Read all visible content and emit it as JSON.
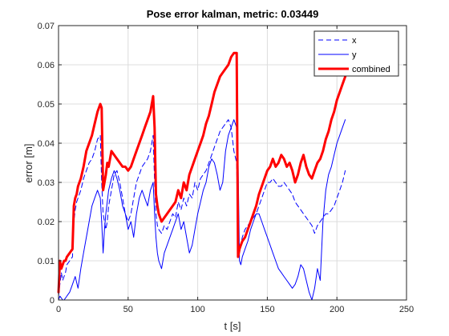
{
  "chart_data": {
    "type": "line",
    "title": "Pose error kalman, metric: 0.03449",
    "xlabel": "t [s]",
    "ylabel": "error [m]",
    "xlim": [
      0,
      250
    ],
    "ylim": [
      0,
      0.07
    ],
    "xticks": [
      0,
      50,
      100,
      150,
      200,
      250
    ],
    "yticks": [
      0,
      0.01,
      0.02,
      0.03,
      0.04,
      0.05,
      0.06,
      0.07
    ],
    "xtick_labels": [
      "0",
      "50",
      "100",
      "150",
      "200",
      "250"
    ],
    "ytick_labels": [
      "0",
      "0.01",
      "0.02",
      "0.03",
      "0.04",
      "0.05",
      "0.06",
      "0.07"
    ],
    "grid": true,
    "legend_position": "top-right",
    "series": [
      {
        "name": "x",
        "color": "#0000ff",
        "style": "dashed",
        "width": 1,
        "x": [
          0,
          1,
          2,
          3,
          4,
          5,
          6,
          8,
          10,
          11,
          12,
          13,
          14,
          16,
          18,
          20,
          22,
          24,
          26,
          28,
          30,
          31,
          32,
          33,
          34,
          35,
          36,
          38,
          40,
          42,
          44,
          46,
          48,
          50,
          52,
          54,
          56,
          58,
          60,
          62,
          64,
          66,
          68,
          69,
          70,
          71,
          72,
          74,
          76,
          78,
          80,
          82,
          84,
          86,
          88,
          90,
          92,
          94,
          96,
          98,
          100,
          102,
          104,
          106,
          108,
          110,
          112,
          114,
          116,
          118,
          120,
          122,
          124,
          126,
          128,
          129,
          130,
          131,
          132,
          134,
          136,
          138,
          140,
          142,
          144,
          146,
          148,
          150,
          152,
          154,
          156,
          158,
          160,
          162,
          164,
          166,
          168,
          170,
          172,
          174,
          176,
          178,
          180,
          182,
          184,
          186,
          188,
          190,
          192,
          194,
          196,
          198,
          200,
          202,
          204,
          206
        ],
        "y": [
          0.001,
          0.004,
          0.007,
          0.005,
          0.006,
          0.007,
          0.009,
          0.01,
          0.011,
          0.02,
          0.023,
          0.025,
          0.026,
          0.028,
          0.031,
          0.033,
          0.035,
          0.036,
          0.038,
          0.041,
          0.042,
          0.03,
          0.022,
          0.02,
          0.018,
          0.02,
          0.024,
          0.028,
          0.032,
          0.033,
          0.03,
          0.026,
          0.022,
          0.02,
          0.022,
          0.026,
          0.03,
          0.032,
          0.034,
          0.035,
          0.036,
          0.038,
          0.042,
          0.03,
          0.022,
          0.019,
          0.018,
          0.017,
          0.019,
          0.018,
          0.02,
          0.022,
          0.021,
          0.025,
          0.023,
          0.026,
          0.024,
          0.027,
          0.026,
          0.03,
          0.028,
          0.031,
          0.032,
          0.033,
          0.035,
          0.037,
          0.039,
          0.041,
          0.043,
          0.044,
          0.045,
          0.046,
          0.044,
          0.038,
          0.035,
          0.012,
          0.012,
          0.014,
          0.016,
          0.018,
          0.019,
          0.02,
          0.021,
          0.022,
          0.024,
          0.026,
          0.028,
          0.03,
          0.03,
          0.031,
          0.03,
          0.029,
          0.029,
          0.03,
          0.029,
          0.028,
          0.027,
          0.025,
          0.024,
          0.023,
          0.022,
          0.021,
          0.02,
          0.019,
          0.017,
          0.019,
          0.02,
          0.021,
          0.022,
          0.022,
          0.023,
          0.024,
          0.026,
          0.028,
          0.03,
          0.033
        ]
      },
      {
        "name": "y",
        "color": "#0000ff",
        "style": "solid",
        "width": 1,
        "x": [
          0,
          1,
          2,
          3,
          4,
          5,
          6,
          8,
          10,
          12,
          14,
          16,
          18,
          20,
          22,
          24,
          26,
          28,
          30,
          31,
          32,
          33,
          34,
          36,
          38,
          40,
          42,
          44,
          46,
          48,
          50,
          52,
          54,
          56,
          58,
          60,
          62,
          64,
          66,
          68,
          69,
          70,
          71,
          72,
          74,
          76,
          78,
          80,
          82,
          84,
          86,
          88,
          90,
          92,
          94,
          96,
          98,
          100,
          102,
          104,
          106,
          108,
          110,
          112,
          114,
          116,
          118,
          120,
          122,
          124,
          126,
          128,
          129,
          130,
          131,
          132,
          134,
          136,
          138,
          140,
          142,
          144,
          146,
          148,
          150,
          152,
          154,
          156,
          158,
          160,
          162,
          164,
          166,
          168,
          170,
          172,
          174,
          176,
          178,
          180,
          182,
          184,
          186,
          188,
          190,
          192,
          194,
          196,
          198,
          200,
          202,
          204,
          206
        ],
        "y": [
          0.0,
          0.001,
          0.0005,
          0.0,
          0.0,
          0.0005,
          0.001,
          0.002,
          0.004,
          0.006,
          0.003,
          0.008,
          0.012,
          0.016,
          0.02,
          0.024,
          0.026,
          0.028,
          0.026,
          0.02,
          0.012,
          0.018,
          0.022,
          0.028,
          0.031,
          0.033,
          0.031,
          0.028,
          0.024,
          0.022,
          0.018,
          0.02,
          0.016,
          0.022,
          0.026,
          0.028,
          0.026,
          0.024,
          0.028,
          0.03,
          0.022,
          0.016,
          0.012,
          0.01,
          0.008,
          0.012,
          0.014,
          0.016,
          0.018,
          0.02,
          0.022,
          0.018,
          0.02,
          0.016,
          0.012,
          0.014,
          0.018,
          0.022,
          0.025,
          0.028,
          0.03,
          0.034,
          0.036,
          0.035,
          0.032,
          0.028,
          0.03,
          0.038,
          0.042,
          0.044,
          0.046,
          0.044,
          0.036,
          0.01,
          0.009,
          0.011,
          0.013,
          0.015,
          0.018,
          0.02,
          0.022,
          0.022,
          0.02,
          0.018,
          0.016,
          0.014,
          0.012,
          0.01,
          0.008,
          0.007,
          0.006,
          0.005,
          0.004,
          0.003,
          0.004,
          0.006,
          0.009,
          0.008,
          0.005,
          0.002,
          0.0,
          0.003,
          0.008,
          0.005,
          0.02,
          0.028,
          0.032,
          0.034,
          0.037,
          0.04,
          0.042,
          0.044,
          0.046
        ]
      },
      {
        "name": "combined",
        "color": "#ff0000",
        "style": "solid",
        "width": 3,
        "x": [
          0,
          1,
          2,
          3,
          4,
          5,
          6,
          8,
          10,
          11,
          12,
          13,
          14,
          16,
          18,
          20,
          22,
          24,
          26,
          28,
          30,
          31,
          32,
          33,
          34,
          35,
          36,
          38,
          40,
          42,
          44,
          46,
          48,
          50,
          52,
          54,
          56,
          58,
          60,
          62,
          64,
          66,
          68,
          69,
          70,
          71,
          72,
          74,
          76,
          78,
          80,
          82,
          84,
          86,
          88,
          90,
          92,
          94,
          96,
          98,
          100,
          102,
          104,
          106,
          108,
          110,
          112,
          114,
          116,
          118,
          120,
          122,
          124,
          126,
          128,
          129,
          130,
          131,
          132,
          134,
          136,
          138,
          140,
          142,
          144,
          146,
          148,
          150,
          152,
          154,
          156,
          158,
          160,
          162,
          164,
          166,
          168,
          170,
          172,
          174,
          176,
          178,
          180,
          182,
          184,
          186,
          188,
          190,
          192,
          194,
          196,
          198,
          200,
          202,
          204,
          206
        ],
        "y": [
          0.002,
          0.01,
          0.008,
          0.009,
          0.01,
          0.01,
          0.011,
          0.012,
          0.013,
          0.024,
          0.026,
          0.027,
          0.029,
          0.031,
          0.034,
          0.038,
          0.04,
          0.042,
          0.045,
          0.048,
          0.05,
          0.049,
          0.028,
          0.03,
          0.032,
          0.035,
          0.034,
          0.038,
          0.037,
          0.036,
          0.035,
          0.034,
          0.034,
          0.033,
          0.034,
          0.036,
          0.038,
          0.04,
          0.042,
          0.044,
          0.046,
          0.048,
          0.052,
          0.044,
          0.027,
          0.024,
          0.022,
          0.02,
          0.021,
          0.022,
          0.023,
          0.024,
          0.025,
          0.028,
          0.026,
          0.03,
          0.028,
          0.032,
          0.034,
          0.036,
          0.038,
          0.04,
          0.042,
          0.045,
          0.047,
          0.05,
          0.053,
          0.055,
          0.057,
          0.058,
          0.059,
          0.06,
          0.062,
          0.063,
          0.063,
          0.011,
          0.013,
          0.014,
          0.015,
          0.016,
          0.018,
          0.02,
          0.022,
          0.024,
          0.027,
          0.029,
          0.031,
          0.033,
          0.034,
          0.036,
          0.034,
          0.035,
          0.037,
          0.036,
          0.034,
          0.035,
          0.033,
          0.03,
          0.032,
          0.035,
          0.037,
          0.034,
          0.032,
          0.031,
          0.033,
          0.035,
          0.036,
          0.038,
          0.041,
          0.043,
          0.046,
          0.048,
          0.051,
          0.053,
          0.055,
          0.057
        ]
      }
    ]
  }
}
